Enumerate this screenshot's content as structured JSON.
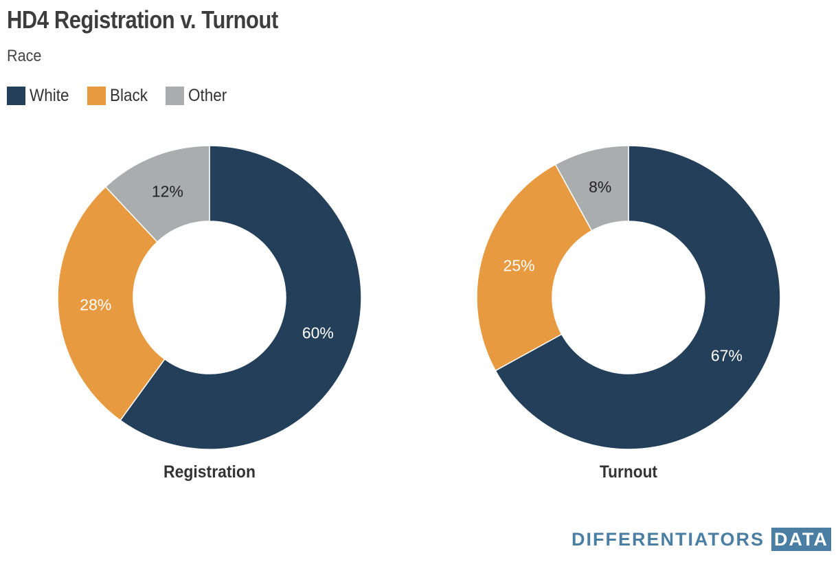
{
  "title": "HD4 Registration v. Turnout",
  "subtitle": "Race",
  "brand": {
    "text": "DIFFERENTIATORS",
    "box": "DATA"
  },
  "colors": {
    "White": "#233f59",
    "Black": "#e89a41",
    "Other": "#a9adad"
  },
  "chart_data": [
    {
      "type": "pie",
      "donut": true,
      "title": "Registration",
      "categories": [
        "White",
        "Black",
        "Other"
      ],
      "values": [
        60,
        28,
        12
      ],
      "labels": [
        "60%",
        "28%",
        "12%"
      ],
      "legend": "top-left"
    },
    {
      "type": "pie",
      "donut": true,
      "title": "Turnout",
      "categories": [
        "White",
        "Black",
        "Other"
      ],
      "values": [
        67,
        25,
        8
      ],
      "labels": [
        "67%",
        "25%",
        "8%"
      ],
      "legend": "top-left"
    }
  ]
}
